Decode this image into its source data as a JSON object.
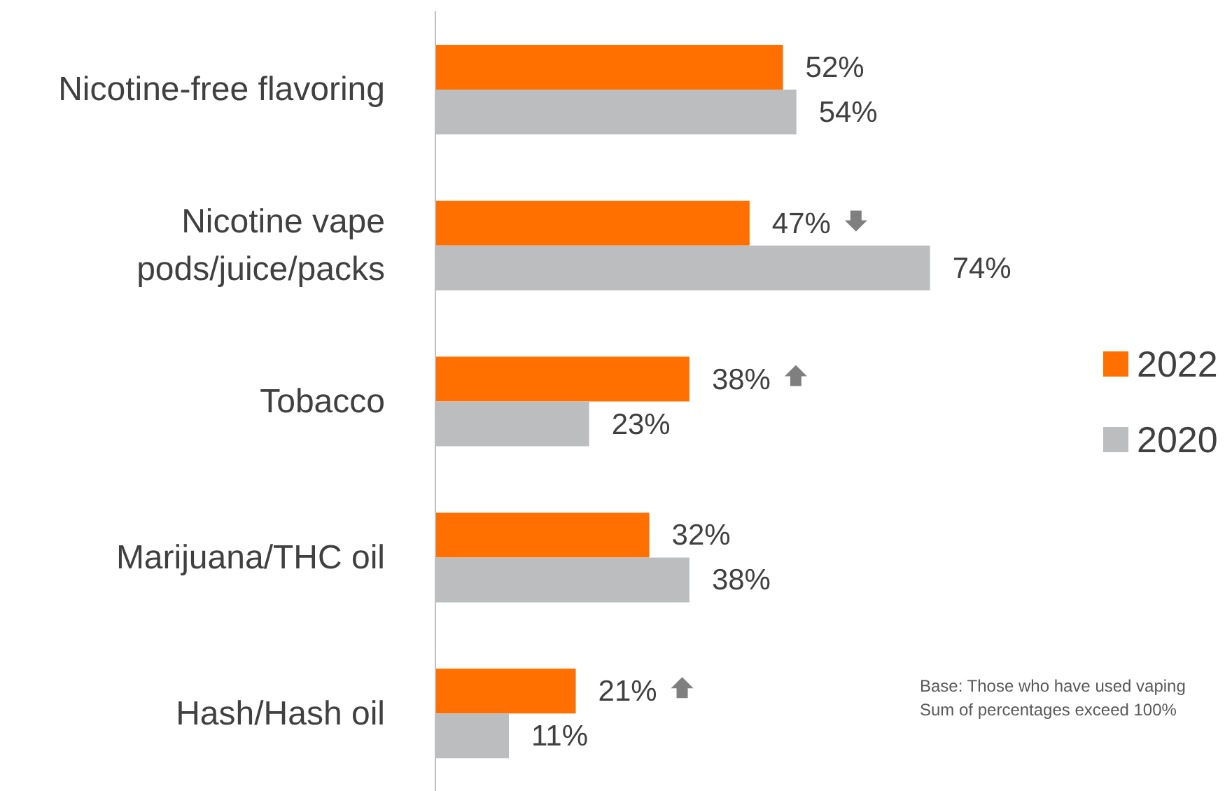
{
  "chart_data": {
    "type": "bar",
    "orientation": "horizontal",
    "categories": [
      "Nicotine-free flavoring",
      "Nicotine vape\npods/juice/packs",
      "Tobacco",
      "Marijuana/THC oil",
      "Hash/Hash oil"
    ],
    "series": [
      {
        "name": "2022",
        "color": "#ff7000",
        "values": [
          52,
          47,
          38,
          32,
          21
        ],
        "value_labels": [
          "52%",
          "47%",
          "38%",
          "32%",
          "21%"
        ]
      },
      {
        "name": "2020",
        "color": "#bbbdbf",
        "values": [
          54,
          74,
          23,
          38,
          11
        ],
        "value_labels": [
          "54%",
          "74%",
          "23%",
          "38%",
          "11%"
        ]
      }
    ],
    "legend": "right",
    "annotations": [
      "Base: Those who have used vaping",
      "Sum of percentages exceed 100%"
    ]
  }
}
